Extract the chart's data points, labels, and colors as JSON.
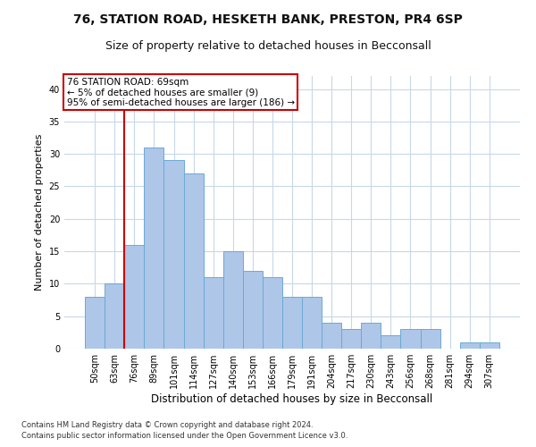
{
  "title1": "76, STATION ROAD, HESKETH BANK, PRESTON, PR4 6SP",
  "title2": "Size of property relative to detached houses in Becconsall",
  "xlabel": "Distribution of detached houses by size in Becconsall",
  "ylabel": "Number of detached properties",
  "categories": [
    "50sqm",
    "63sqm",
    "76sqm",
    "89sqm",
    "101sqm",
    "114sqm",
    "127sqm",
    "140sqm",
    "153sqm",
    "166sqm",
    "179sqm",
    "191sqm",
    "204sqm",
    "217sqm",
    "230sqm",
    "243sqm",
    "256sqm",
    "268sqm",
    "281sqm",
    "294sqm",
    "307sqm"
  ],
  "values": [
    8,
    10,
    16,
    31,
    29,
    27,
    11,
    15,
    12,
    11,
    8,
    8,
    4,
    3,
    4,
    2,
    3,
    3,
    0,
    1,
    1
  ],
  "bar_color": "#aec6e8",
  "bar_edge_color": "#6aaad4",
  "vline_x": 1.5,
  "vline_color": "#cc0000",
  "annotation_text": "76 STATION ROAD: 69sqm\n← 5% of detached houses are smaller (9)\n95% of semi-detached houses are larger (186) →",
  "annotation_box_color": "#ffffff",
  "annotation_box_edgecolor": "#cc0000",
  "ylim": [
    0,
    42
  ],
  "yticks": [
    0,
    5,
    10,
    15,
    20,
    25,
    30,
    35,
    40
  ],
  "footer1": "Contains HM Land Registry data © Crown copyright and database right 2024.",
  "footer2": "Contains public sector information licensed under the Open Government Licence v3.0.",
  "bg_color": "#ffffff",
  "grid_color": "#c8d8e8",
  "title1_fontsize": 10,
  "title2_fontsize": 9,
  "tick_fontsize": 7,
  "ylabel_fontsize": 8,
  "xlabel_fontsize": 8.5,
  "footer_fontsize": 6,
  "ann_fontsize": 7.5
}
